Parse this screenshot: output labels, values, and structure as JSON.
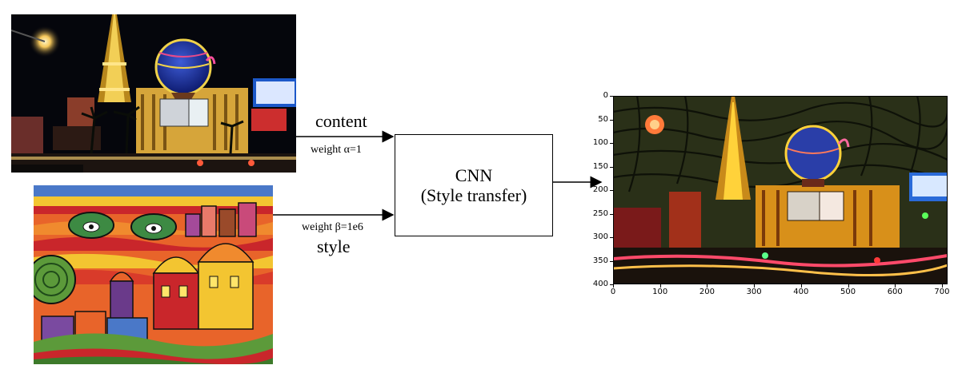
{
  "inputs": {
    "content_label": "content",
    "content_weight": "weight α=1",
    "style_label": "style",
    "style_weight": "weight β=1e6"
  },
  "model": {
    "line1": "CNN",
    "line2": "(Style transfer)"
  },
  "output_axes": {
    "y_ticks": [
      "0",
      "50",
      "100",
      "150",
      "200",
      "250",
      "300",
      "350",
      "400"
    ],
    "x_ticks": [
      "0",
      "100",
      "200",
      "300",
      "400",
      "500",
      "600",
      "700"
    ]
  },
  "colors": {
    "line": "#000000",
    "night_sky": "#05060c",
    "style_orange": "#e8642a",
    "style_red": "#c9262b",
    "style_yellow": "#f3c531",
    "style_green": "#5c9a3a"
  }
}
